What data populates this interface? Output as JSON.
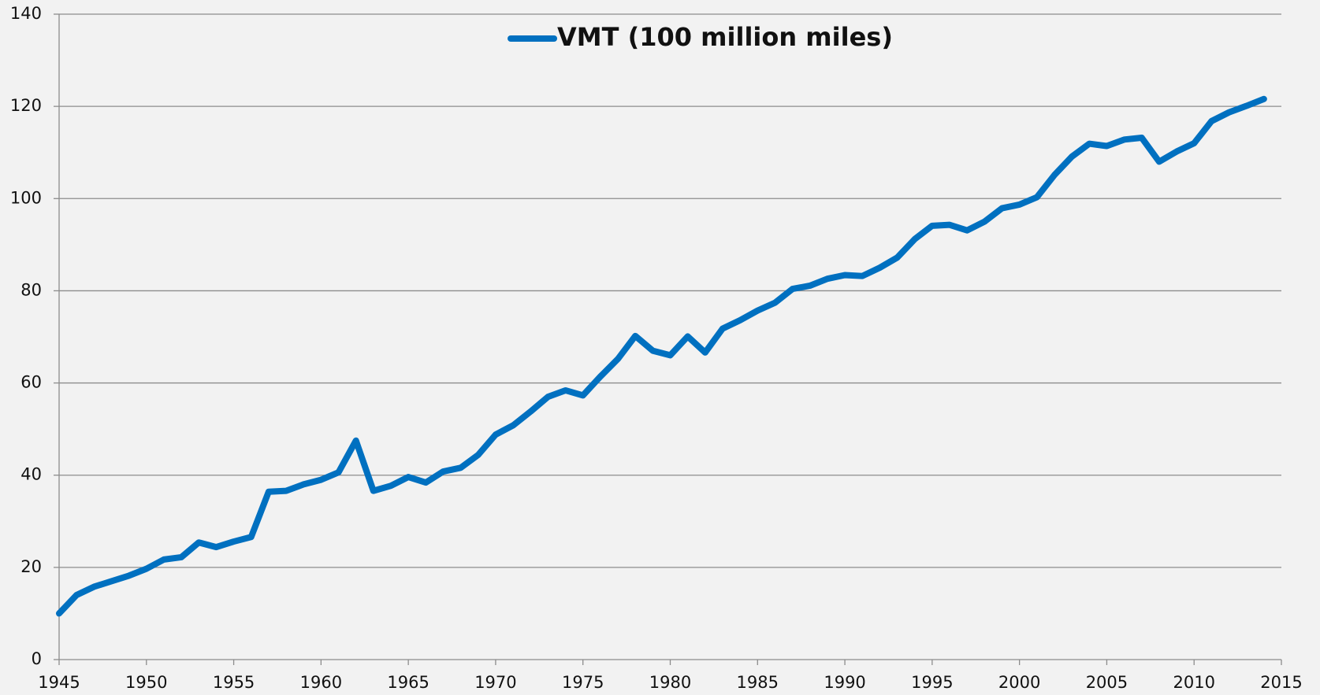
{
  "chart_data": {
    "type": "line",
    "x": [
      1945,
      1946,
      1947,
      1948,
      1949,
      1950,
      1951,
      1952,
      1953,
      1954,
      1955,
      1956,
      1957,
      1958,
      1959,
      1960,
      1961,
      1962,
      1963,
      1964,
      1965,
      1966,
      1967,
      1968,
      1969,
      1970,
      1971,
      1972,
      1973,
      1974,
      1975,
      1976,
      1977,
      1978,
      1979,
      1980,
      1981,
      1982,
      1983,
      1984,
      1985,
      1986,
      1987,
      1988,
      1989,
      1990,
      1991,
      1992,
      1993,
      1994,
      1995,
      1996,
      1997,
      1998,
      1999,
      2000,
      2001,
      2002,
      2003,
      2004,
      2005,
      2006,
      2007,
      2008,
      2009,
      2010,
      2011,
      2012,
      2013,
      2014
    ],
    "series": [
      {
        "name": "VMT (100 million miles)",
        "color": "#0070c0",
        "values": [
          10,
          14,
          15.8,
          17,
          18.2,
          19.7,
          21.7,
          22.2,
          25.4,
          24.4,
          25.6,
          26.6,
          36.4,
          36.6,
          38,
          39,
          40.6,
          47.5,
          36.6,
          37.7,
          39.6,
          38.4,
          40.8,
          41.6,
          44.4,
          48.8,
          50.8,
          53.8,
          57,
          58.4,
          57.3,
          61.4,
          65.2,
          70.2,
          67,
          66,
          70.1,
          66.6,
          71.8,
          73.6,
          75.7,
          77.4,
          80.4,
          81.1,
          82.6,
          83.4,
          83.2,
          85,
          87.2,
          91.2,
          94.1,
          94.3,
          93.1,
          95,
          97.9,
          98.7,
          100.3,
          105.1,
          109.1,
          111.9,
          111.4,
          112.8,
          113.2,
          108,
          110.2,
          112,
          116.8,
          118.7,
          120.1,
          121.6
        ]
      }
    ],
    "xlim": [
      1945,
      2015
    ],
    "xticks": [
      1945,
      1950,
      1955,
      1960,
      1965,
      1970,
      1975,
      1980,
      1985,
      1990,
      1995,
      2000,
      2005,
      2010,
      2015
    ],
    "ylim": [
      0,
      140
    ],
    "yticks": [
      0,
      20,
      40,
      60,
      80,
      100,
      120,
      140
    ],
    "grid": true,
    "legend": "top"
  }
}
